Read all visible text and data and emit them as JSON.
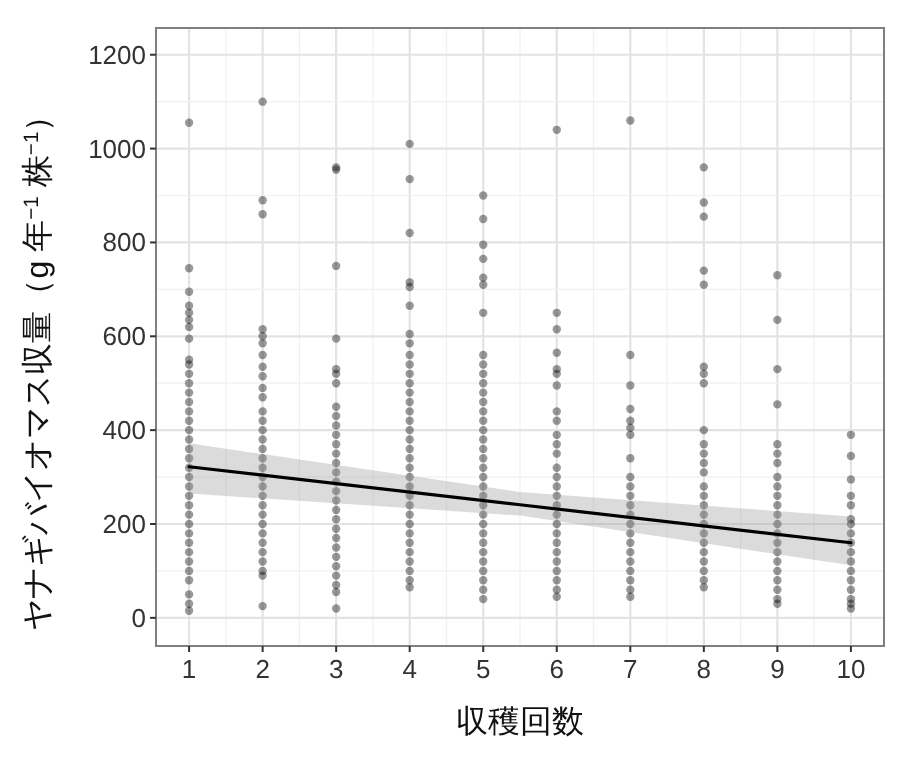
{
  "chart_data": {
    "type": "scatter",
    "xlabel": "収穫回数",
    "ylabel": "ヤナギバイオマス収量（g 年$^{−1}$ 株$^{−1}$）",
    "xlim": [
      0.55,
      10.45
    ],
    "ylim": [
      -60,
      1257
    ],
    "xticks": [
      1,
      2,
      3,
      4,
      5,
      6,
      7,
      8,
      9,
      10
    ],
    "yticks": [
      0,
      200,
      400,
      600,
      800,
      1000,
      1200
    ],
    "grid": true,
    "series": [
      {
        "type": "scatter",
        "marker": "circle",
        "color": "#000000",
        "x": [
          1,
          1,
          1,
          1,
          1,
          1,
          1,
          1,
          1,
          1,
          1,
          1,
          1,
          1,
          1,
          1,
          1,
          1,
          1,
          1,
          1,
          1,
          1,
          1,
          1,
          1,
          1,
          1,
          1,
          1,
          1,
          1,
          1,
          1,
          1,
          1,
          2,
          2,
          2,
          2,
          2,
          2,
          2,
          2,
          2,
          2,
          2,
          2,
          2,
          2,
          2,
          2,
          2,
          2,
          2,
          2,
          2,
          2,
          2,
          2,
          2,
          2,
          2,
          2,
          2,
          2,
          2,
          3,
          3,
          3,
          3,
          3,
          3,
          3,
          3,
          3,
          3,
          3,
          3,
          3,
          3,
          3,
          3,
          3,
          3,
          3,
          3,
          3,
          3,
          3,
          3,
          3,
          3,
          3,
          3,
          3,
          4,
          4,
          4,
          4,
          4,
          4,
          4,
          4,
          4,
          4,
          4,
          4,
          4,
          4,
          4,
          4,
          4,
          4,
          4,
          4,
          4,
          4,
          4,
          4,
          4,
          4,
          4,
          4,
          4,
          4,
          4,
          4,
          4,
          4,
          5,
          5,
          5,
          5,
          5,
          5,
          5,
          5,
          5,
          5,
          5,
          5,
          5,
          5,
          5,
          5,
          5,
          5,
          5,
          5,
          5,
          5,
          5,
          5,
          5,
          5,
          5,
          5,
          5,
          5,
          5,
          5,
          5,
          5,
          6,
          6,
          6,
          6,
          6,
          6,
          6,
          6,
          6,
          6,
          6,
          6,
          6,
          6,
          6,
          6,
          6,
          6,
          6,
          6,
          6,
          6,
          6,
          6,
          6,
          6,
          6,
          7,
          7,
          7,
          7,
          7,
          7,
          7,
          7,
          7,
          7,
          7,
          7,
          7,
          7,
          7,
          7,
          7,
          7,
          7,
          7,
          7,
          7,
          8,
          8,
          8,
          8,
          8,
          8,
          8,
          8,
          8,
          8,
          8,
          8,
          8,
          8,
          8,
          8,
          8,
          8,
          8,
          8,
          8,
          8,
          8,
          8,
          8,
          9,
          9,
          9,
          9,
          9,
          9,
          9,
          9,
          9,
          9,
          9,
          9,
          9,
          9,
          9,
          9,
          9,
          9,
          9,
          9,
          9,
          9,
          10,
          10,
          10,
          10,
          10,
          10,
          10,
          10,
          10,
          10,
          10,
          10,
          10,
          10,
          10,
          10,
          10
        ],
        "values": [
          1055,
          745,
          695,
          665,
          650,
          635,
          620,
          595,
          550,
          540,
          520,
          500,
          480,
          460,
          440,
          420,
          400,
          380,
          360,
          340,
          320,
          300,
          280,
          260,
          240,
          220,
          200,
          180,
          160,
          140,
          120,
          100,
          80,
          50,
          30,
          15,
          1100,
          890,
          860,
          615,
          600,
          585,
          560,
          535,
          515,
          490,
          470,
          440,
          420,
          400,
          380,
          360,
          340,
          320,
          300,
          280,
          260,
          240,
          220,
          200,
          180,
          160,
          140,
          120,
          100,
          90,
          25,
          960,
          955,
          750,
          595,
          530,
          520,
          500,
          450,
          430,
          410,
          390,
          370,
          350,
          330,
          310,
          290,
          270,
          250,
          230,
          210,
          190,
          170,
          150,
          130,
          110,
          90,
          70,
          55,
          20,
          1010,
          935,
          820,
          715,
          705,
          665,
          605,
          585,
          560,
          540,
          520,
          500,
          480,
          460,
          440,
          420,
          400,
          380,
          360,
          340,
          320,
          300,
          280,
          260,
          240,
          220,
          200,
          180,
          160,
          140,
          120,
          100,
          80,
          65,
          900,
          850,
          795,
          765,
          725,
          710,
          650,
          560,
          540,
          520,
          500,
          480,
          460,
          440,
          420,
          400,
          380,
          360,
          340,
          320,
          300,
          280,
          260,
          240,
          220,
          200,
          180,
          160,
          140,
          120,
          100,
          80,
          60,
          40,
          1040,
          650,
          615,
          565,
          530,
          520,
          495,
          440,
          420,
          390,
          370,
          350,
          320,
          300,
          280,
          260,
          240,
          220,
          200,
          180,
          160,
          140,
          120,
          100,
          80,
          60,
          45,
          1060,
          560,
          495,
          445,
          420,
          405,
          390,
          340,
          300,
          280,
          260,
          240,
          220,
          200,
          180,
          160,
          140,
          120,
          100,
          80,
          60,
          45,
          960,
          885,
          855,
          740,
          710,
          535,
          520,
          500,
          400,
          370,
          350,
          330,
          310,
          280,
          260,
          240,
          220,
          200,
          180,
          160,
          140,
          120,
          100,
          80,
          65,
          730,
          635,
          530,
          455,
          370,
          350,
          330,
          300,
          280,
          260,
          240,
          220,
          200,
          180,
          160,
          140,
          120,
          100,
          80,
          60,
          40,
          30,
          390,
          345,
          295,
          260,
          240,
          210,
          200,
          180,
          160,
          140,
          120,
          100,
          80,
          60,
          40,
          30,
          20
        ]
      },
      {
        "type": "line",
        "marker": "none",
        "color": "#000000",
        "x": [
          1,
          5.5,
          10
        ],
        "values": [
          322,
          241,
          160
        ],
        "lower": [
          265,
          218,
          112
        ],
        "upper": [
          372,
          268,
          216
        ]
      }
    ]
  }
}
